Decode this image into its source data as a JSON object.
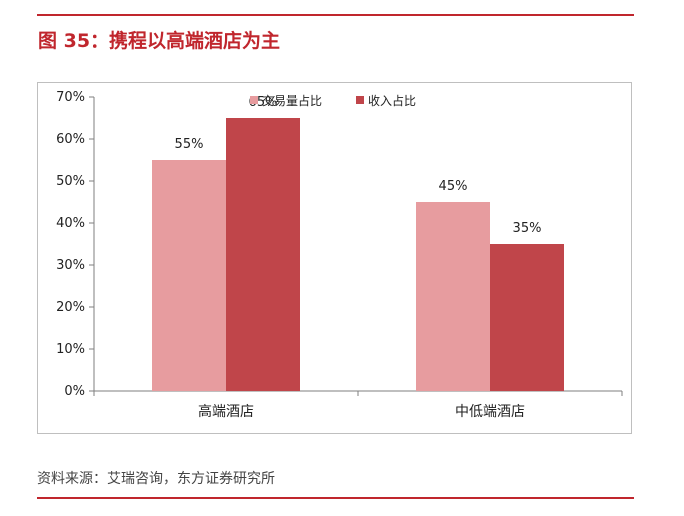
{
  "figure": {
    "title": "图 35：携程以高端酒店为主",
    "source": "资料来源：艾瑞咨询，东方证券研究所"
  },
  "colors": {
    "accent": "#c0262d",
    "series1": "#e79c9f",
    "series2": "#c0454a"
  },
  "chart_data": {
    "type": "bar",
    "title": "",
    "xlabel": "",
    "ylabel": "",
    "categories": [
      "高端酒店",
      "中低端酒店"
    ],
    "series": [
      {
        "name": "交易量占比",
        "values": [
          55,
          45
        ],
        "labels": [
          "55%",
          "45%"
        ]
      },
      {
        "name": "收入占比",
        "values": [
          65,
          35
        ],
        "labels": [
          "65%",
          "35%"
        ]
      }
    ],
    "ylim": [
      0,
      70
    ],
    "yticks": [
      0,
      10,
      20,
      30,
      40,
      50,
      60,
      70
    ],
    "ytick_labels": [
      "0%",
      "10%",
      "20%",
      "30%",
      "40%",
      "50%",
      "60%",
      "70%"
    ],
    "grid": false,
    "legend": "top-center"
  }
}
